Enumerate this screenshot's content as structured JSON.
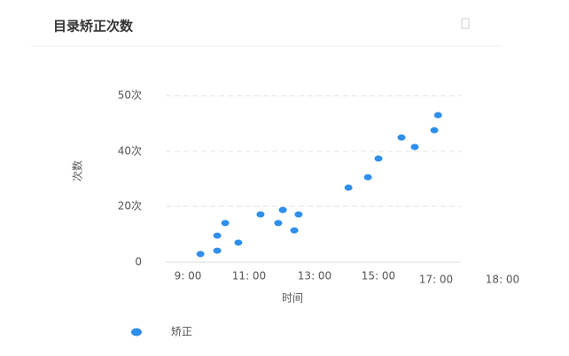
{
  "chart_data": {
    "type": "scatter",
    "title": "目录矫正次数",
    "x_label": "时间",
    "y_label": "次数",
    "series": [
      {
        "name": "矫正",
        "color": "#2f8fea",
        "x": [
          9.41,
          9.96,
          9.96,
          10.22,
          10.65,
          11.35,
          11.89,
          12.03,
          12.38,
          12.51,
          14.06,
          14.67,
          15.0,
          15.8,
          16.26,
          16.94,
          17.03
        ],
        "values": [
          2.9,
          9.5,
          4.1,
          14.0,
          7.0,
          17.1,
          14.0,
          18.7,
          11.4,
          17.1,
          26.8,
          30.6,
          37.4,
          42.5,
          40.8,
          43.8,
          46.5
        ]
      }
    ],
    "xlim": [
      8.3,
      18
    ],
    "ylim": [
      0,
      50
    ],
    "xticks": [
      {
        "value": 9,
        "label": "9: 00"
      },
      {
        "value": 11,
        "label": "11: 00"
      },
      {
        "value": 13,
        "label": "13: 00"
      },
      {
        "value": 15,
        "label": "15: 00"
      },
      {
        "value": 17,
        "label": "17: 00"
      },
      {
        "value": 18,
        "label": "18: 00"
      }
    ],
    "yticks": [
      0,
      {
        "value": 20,
        "label": "20次"
      },
      {
        "value": 40,
        "label": "40次"
      },
      {
        "value": 50,
        "label": "50次"
      }
    ],
    "grid": true
  }
}
